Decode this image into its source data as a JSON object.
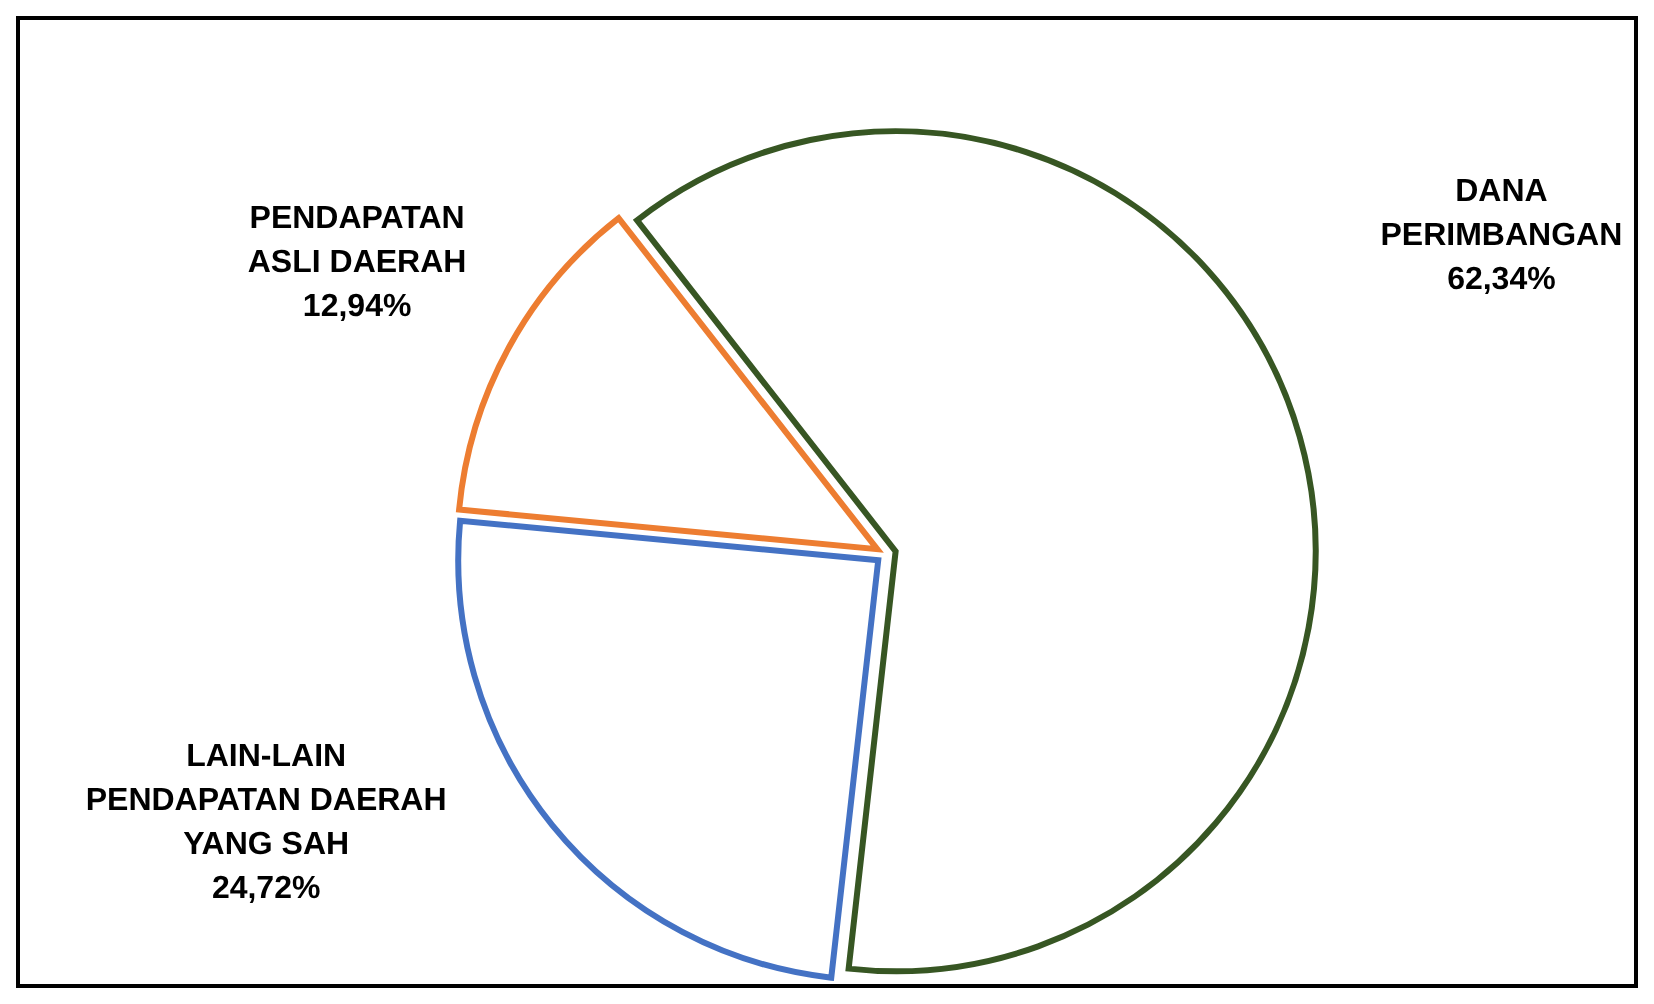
{
  "chart_data": {
    "type": "pie",
    "categories": [
      "DANA PERIMBANGAN",
      "LAIN-LAIN PENDAPATAN DAERAH YANG SAH",
      "PENDAPATAN ASLI DAERAH"
    ],
    "values": [
      62.34,
      24.72,
      12.94
    ],
    "colors": [
      "#375623",
      "#4472c4",
      "#ed7d31"
    ],
    "value_labels": [
      "62,34%",
      "24,72%",
      "12,94%"
    ],
    "legend": false
  }
}
